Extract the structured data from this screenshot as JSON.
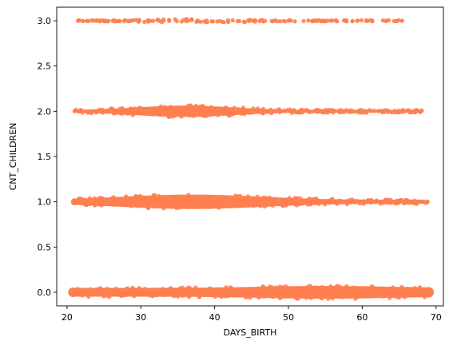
{
  "chart_data": {
    "type": "scatter",
    "title": "",
    "xlabel": "DAYS_BIRTH",
    "ylabel": "CNT_CHILDREN",
    "xlim": [
      18.6,
      71.0
    ],
    "ylim": [
      -0.15,
      3.15
    ],
    "xticks": [
      "20",
      "30",
      "40",
      "50",
      "60",
      "70"
    ],
    "yticks": [
      "0.0",
      "0.5",
      "1.0",
      "1.5",
      "2.0",
      "2.5",
      "3.0"
    ],
    "grid": false,
    "legend": "none",
    "marker_color": "#FF7F50",
    "series": [
      {
        "values": [
          {
            "y": 0,
            "x_range": [
              20.8,
              69.0
            ]
          },
          {
            "y": 1,
            "x_range": [
              21.0,
              68.8
            ]
          },
          {
            "y": 2,
            "x_range": [
              21.0,
              68.1
            ]
          },
          {
            "y": 3,
            "x_range": [
              21.5,
              65.4
            ]
          }
        ]
      }
    ]
  }
}
